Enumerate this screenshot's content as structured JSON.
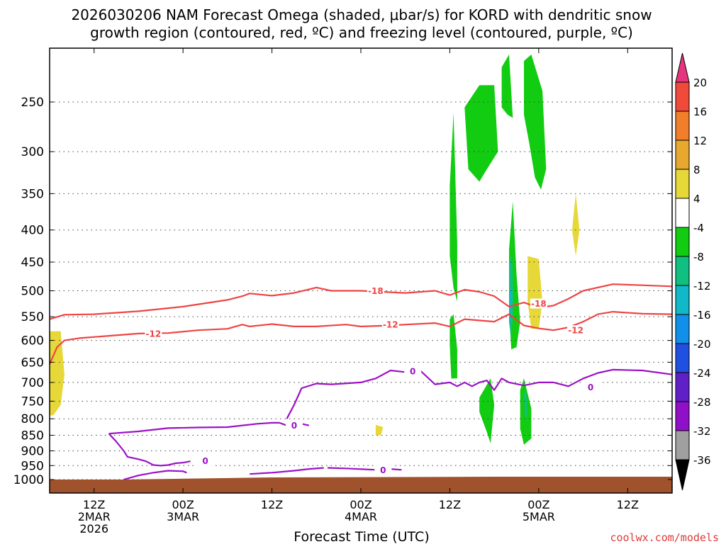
{
  "title_line1": "2026030206 NAM Forecast Omega (shaded, μbar/s) for KORD with dendritic snow",
  "title_line2": "growth region (contoured, red, ºC) and freezing level (contoured, purple, ºC)",
  "credit": "coolwx.com/models",
  "chart_data": {
    "type": "contour",
    "xlabel": "Forecast Time (UTC)",
    "ylabel": "",
    "x_ticks": [
      {
        "hours": 6,
        "lines": [
          "12Z",
          "2MAR",
          "2026"
        ]
      },
      {
        "hours": 18,
        "lines": [
          "00Z",
          "3MAR"
        ]
      },
      {
        "hours": 30,
        "lines": [
          "12Z"
        ]
      },
      {
        "hours": 42,
        "lines": [
          "00Z",
          "4MAR"
        ]
      },
      {
        "hours": 54,
        "lines": [
          "12Z"
        ]
      },
      {
        "hours": 66,
        "lines": [
          "00Z",
          "5MAR"
        ]
      },
      {
        "hours": 78,
        "lines": [
          "12Z"
        ]
      }
    ],
    "xlim": [
      0,
      84
    ],
    "y_ticks": [
      250,
      300,
      350,
      400,
      450,
      500,
      550,
      600,
      650,
      700,
      750,
      800,
      850,
      900,
      950,
      1000
    ],
    "ylim": [
      1000,
      200
    ],
    "y_scale": "log-pressure",
    "grid": true,
    "colorbar": {
      "labels": [
        "20",
        "16",
        "12",
        "8",
        "4",
        "-4",
        "-8",
        "-12",
        "-16",
        "-20",
        "-24",
        "-28",
        "-32",
        "-36"
      ],
      "colors": [
        "#e8347e",
        "#ef4a3a",
        "#f07e2a",
        "#e8a830",
        "#e6d838",
        "#ffffff",
        "#11cc11",
        "#10c080",
        "#10b8c8",
        "#1090e8",
        "#2050e0",
        "#6020c8",
        "#9010c8",
        "#a0a0a0",
        "#000000"
      ]
    },
    "series": [
      {
        "name": "-18",
        "color": "#ef4444",
        "x": [
          0,
          2,
          6,
          12,
          18,
          24,
          26,
          27,
          30,
          33,
          36,
          38,
          42,
          48,
          52,
          54,
          56,
          58,
          60,
          62,
          64,
          66,
          68,
          70,
          72,
          76,
          80,
          84
        ],
        "y": [
          555,
          546,
          545,
          539,
          530,
          517,
          510,
          505,
          509,
          504,
          494,
          500,
          500,
          504,
          500,
          508,
          498,
          502,
          510,
          530,
          522,
          532,
          528,
          515,
          500,
          488,
          490,
          492
        ]
      },
      {
        "name": "-12",
        "color": "#ef4444",
        "x": [
          0,
          1,
          2,
          4,
          8,
          12,
          16,
          20,
          24,
          26,
          27,
          30,
          33,
          36,
          40,
          42,
          46,
          48,
          52,
          54,
          56,
          60,
          62,
          64,
          66,
          68,
          70,
          72,
          74,
          76,
          80,
          84
        ],
        "y": [
          655,
          615,
          600,
          595,
          590,
          585,
          584,
          578,
          575,
          566,
          570,
          565,
          570,
          570,
          566,
          570,
          568,
          566,
          563,
          570,
          555,
          560,
          545,
          568,
          574,
          578,
          572,
          560,
          545,
          540,
          544,
          545
        ]
      },
      {
        "name": "0",
        "color": "#9b11c7",
        "x": [
          32,
          33,
          34,
          36,
          38,
          42,
          44,
          46,
          48,
          50,
          52,
          54,
          55,
          56,
          57,
          58,
          59,
          60,
          61,
          62,
          64,
          66,
          68,
          70,
          72,
          74,
          76,
          80,
          84
        ],
        "y": [
          800,
          760,
          715,
          703,
          705,
          700,
          690,
          670,
          674,
          670,
          705,
          700,
          710,
          700,
          710,
          700,
          695,
          720,
          690,
          700,
          708,
          700,
          700,
          710,
          690,
          676,
          668,
          670,
          680
        ]
      },
      {
        "name": "0",
        "color": "#9b11c7",
        "x": [
          8,
          12,
          16,
          20,
          24,
          28,
          30,
          31,
          32,
          34,
          35
        ],
        "y": [
          845,
          838,
          828,
          826,
          825,
          815,
          812,
          812,
          820,
          815,
          820
        ]
      },
      {
        "name": "0",
        "color": "#9b11c7",
        "x": [
          8,
          9,
          10,
          10.5,
          12,
          13,
          14,
          15,
          16,
          17,
          18,
          19
        ],
        "y": [
          845,
          870,
          900,
          920,
          928,
          935,
          948,
          950,
          948,
          942,
          940,
          935
        ]
      },
      {
        "name": "0",
        "color": "#9b11c7",
        "x": [
          10,
          12,
          14,
          16,
          18,
          18.5
        ],
        "y": [
          1000,
          985,
          975,
          968,
          970,
          975
        ]
      },
      {
        "name": "0",
        "color": "#9b11c7",
        "x": [
          27,
          30,
          33,
          35,
          37
        ],
        "y": [
          980,
          975,
          968,
          962,
          958
        ]
      },
      {
        "name": "0",
        "color": "#9b11c7",
        "x": [
          37.5,
          40,
          44,
          46,
          47.5
        ],
        "y": [
          958,
          960,
          965,
          962,
          965
        ]
      }
    ],
    "shaded_regions": [
      {
        "level": "-4 to -8",
        "color": "#11cc11",
        "pts": [
          [
            54,
            340
          ],
          [
            54.5,
            260
          ],
          [
            55,
            420
          ],
          [
            55,
            520
          ],
          [
            54.5,
            495
          ],
          [
            54,
            440
          ]
        ]
      },
      {
        "level": "-4 to -8",
        "color": "#11cc11",
        "pts": [
          [
            56,
            255
          ],
          [
            58,
            235
          ],
          [
            60,
            235
          ],
          [
            60.5,
            300
          ],
          [
            59,
            320
          ],
          [
            58,
            335
          ],
          [
            56.5,
            320
          ]
        ]
      },
      {
        "level": "-4 to -8",
        "color": "#11cc11",
        "pts": [
          [
            61,
            220
          ],
          [
            62,
            210
          ],
          [
            62.5,
            265
          ],
          [
            61.8,
            262
          ],
          [
            61,
            255
          ]
        ]
      },
      {
        "level": "-4 to -8",
        "color": "#11cc11",
        "pts": [
          [
            64,
            215
          ],
          [
            65,
            210
          ],
          [
            66.5,
            240
          ],
          [
            67,
            320
          ],
          [
            66.3,
            345
          ],
          [
            65.5,
            330
          ],
          [
            64.7,
            290
          ],
          [
            64,
            262
          ]
        ]
      },
      {
        "level": "-4 to -8",
        "color": "#11cc11",
        "pts": [
          [
            54,
            555
          ],
          [
            54.5,
            545
          ],
          [
            55,
            620
          ],
          [
            55,
            690
          ],
          [
            54.2,
            690
          ],
          [
            54,
            610
          ]
        ]
      },
      {
        "level": "-4 to -8",
        "color": "#11cc11",
        "pts": [
          [
            62,
            430
          ],
          [
            62.5,
            360
          ],
          [
            63,
            470
          ],
          [
            63.5,
            560
          ],
          [
            63,
            615
          ],
          [
            62.3,
            620
          ],
          [
            62,
            540
          ]
        ]
      },
      {
        "level": "-4 to -8",
        "color": "#11cc11",
        "pts": [
          [
            58,
            740
          ],
          [
            59.5,
            690
          ],
          [
            60,
            760
          ],
          [
            59.5,
            875
          ],
          [
            59,
            840
          ],
          [
            58,
            780
          ]
        ]
      },
      {
        "level": "-4 to -8",
        "color": "#11cc11",
        "pts": [
          [
            63.5,
            720
          ],
          [
            64,
            690
          ],
          [
            65,
            770
          ],
          [
            65,
            860
          ],
          [
            64,
            880
          ],
          [
            63.5,
            830
          ]
        ]
      },
      {
        "level": "-8 to -12",
        "color": "#10c080",
        "pts": [
          [
            62,
            450
          ],
          [
            62.4,
            440
          ],
          [
            62.6,
            520
          ],
          [
            62.3,
            600
          ],
          [
            62,
            560
          ]
        ]
      },
      {
        "level": "-12 to -16",
        "color": "#10b8c8",
        "pts": [
          [
            62.1,
            500
          ],
          [
            62.35,
            495
          ],
          [
            62.4,
            540
          ],
          [
            62.2,
            570
          ]
        ]
      },
      {
        "level": "-8 to -12",
        "color": "#10c080",
        "pts": [
          [
            64,
            730
          ],
          [
            64.3,
            720
          ],
          [
            64.5,
            790
          ],
          [
            64.2,
            800
          ]
        ]
      },
      {
        "level": "4 to 8",
        "color": "#e6d838",
        "pts": [
          [
            0,
            580
          ],
          [
            1.5,
            580
          ],
          [
            2,
            680
          ],
          [
            1.5,
            760
          ],
          [
            0.5,
            790
          ],
          [
            0,
            790
          ]
        ]
      },
      {
        "level": "4 to 8",
        "color": "#e6d838",
        "pts": [
          [
            64.5,
            440
          ],
          [
            66,
            445
          ],
          [
            66.5,
            520
          ],
          [
            66,
            575
          ],
          [
            65,
            575
          ],
          [
            64.5,
            520
          ]
        ]
      },
      {
        "level": "4 to 8",
        "color": "#e6d838",
        "pts": [
          [
            71,
            350
          ],
          [
            71.5,
            400
          ],
          [
            71,
            440
          ],
          [
            70.5,
            400
          ]
        ]
      },
      {
        "level": "4 to 8",
        "color": "#e6d838",
        "pts": [
          [
            44,
            818
          ],
          [
            45,
            825
          ],
          [
            44.7,
            850
          ],
          [
            44,
            850
          ]
        ]
      }
    ],
    "contour_labels": [
      {
        "text": "-18",
        "x": 44,
        "y": 500,
        "color": "#ef4444"
      },
      {
        "text": "-18",
        "x": 66,
        "y": 524,
        "color": "#ef4444"
      },
      {
        "text": "-12",
        "x": 14,
        "y": 585,
        "color": "#ef4444"
      },
      {
        "text": "-12",
        "x": 46,
        "y": 566,
        "color": "#ef4444"
      },
      {
        "text": "-12",
        "x": 71,
        "y": 578,
        "color": "#ef4444"
      },
      {
        "text": "0",
        "x": 49,
        "y": 672,
        "color": "#9b11c7"
      },
      {
        "text": "0",
        "x": 73,
        "y": 712,
        "color": "#9b11c7"
      },
      {
        "text": "0",
        "x": 33,
        "y": 820,
        "color": "#9b11c7"
      },
      {
        "text": "0",
        "x": 21,
        "y": 934,
        "color": "#9b11c7"
      },
      {
        "text": "0",
        "x": 45,
        "y": 965,
        "color": "#9b11c7"
      }
    ],
    "terrain": {
      "color": "#a0522d",
      "x": [
        0,
        84
      ],
      "y": [
        1000,
        1000
      ]
    }
  }
}
